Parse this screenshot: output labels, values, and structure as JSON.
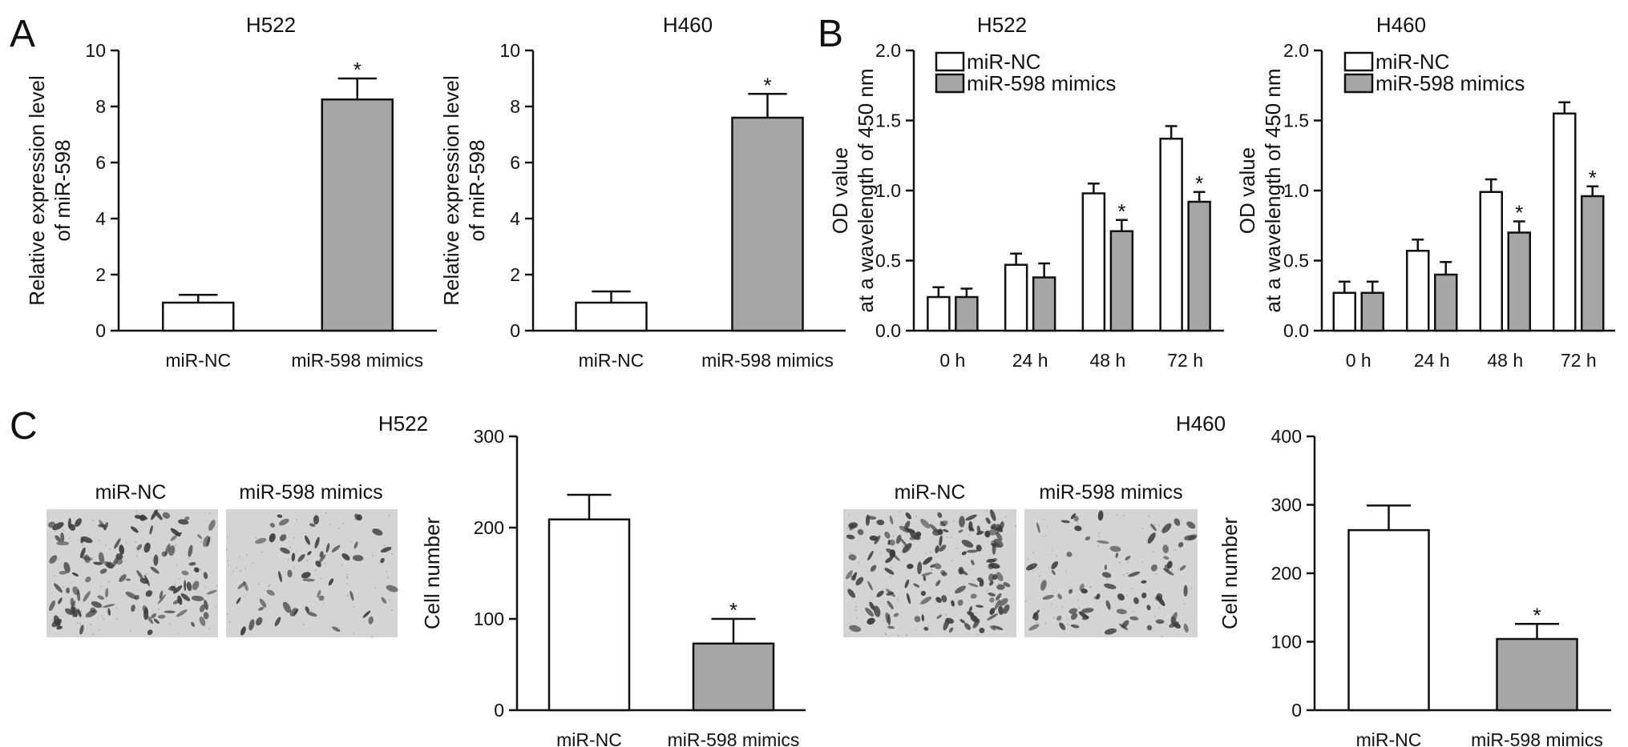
{
  "figure": {
    "panel_letters": [
      "A",
      "B",
      "C"
    ]
  },
  "colors": {
    "control_fill": "#ffffff",
    "treatment_fill": "#a6a6a6",
    "stroke": "#111111",
    "micro_background": "#d4d4d4",
    "cell_color": "#3a3a3a"
  },
  "micrographs": {
    "H522": {
      "labels": [
        "miR-NC",
        "miR-598 mimics"
      ]
    },
    "H460": {
      "labels": [
        "miR-NC",
        "miR-598 mimics"
      ]
    }
  },
  "chart_data": [
    {
      "id": "A_H522",
      "panel": "A",
      "type": "bar",
      "title": "H522",
      "ylabel": [
        "Relative expression level",
        "of miR-598"
      ],
      "xlabel": "",
      "categories": [
        "miR-NC",
        "miR-598 mimics"
      ],
      "values": [
        1.0,
        8.25
      ],
      "errors": [
        0.28,
        0.75
      ],
      "significant": [
        false,
        true
      ],
      "ylim": [
        0,
        10
      ],
      "yticks": [
        0,
        2,
        4,
        6,
        8,
        10
      ]
    },
    {
      "id": "A_H460",
      "panel": "A",
      "type": "bar",
      "title": "H460",
      "ylabel": [
        "Relative expression level",
        "of miR-598"
      ],
      "xlabel": "",
      "categories": [
        "miR-NC",
        "miR-598 mimics"
      ],
      "values": [
        1.0,
        7.6
      ],
      "errors": [
        0.4,
        0.85
      ],
      "significant": [
        false,
        true
      ],
      "ylim": [
        0,
        10
      ],
      "yticks": [
        0,
        2,
        4,
        6,
        8,
        10
      ]
    },
    {
      "id": "B_H522",
      "panel": "B",
      "type": "bar",
      "title": "H522",
      "ylabel": [
        "OD value",
        "at a wavelength of 450 nm"
      ],
      "xlabel": "",
      "categories": [
        "0 h",
        "24 h",
        "48 h",
        "72 h"
      ],
      "series": [
        {
          "name": "miR-NC",
          "values": [
            0.24,
            0.47,
            0.98,
            1.37
          ],
          "errors": [
            0.07,
            0.08,
            0.07,
            0.09
          ],
          "significant": [
            false,
            false,
            false,
            false
          ]
        },
        {
          "name": "miR-598 mimics",
          "values": [
            0.24,
            0.38,
            0.71,
            0.92
          ],
          "errors": [
            0.06,
            0.1,
            0.08,
            0.07
          ],
          "significant": [
            false,
            false,
            true,
            true
          ]
        }
      ],
      "ylim": [
        0,
        2.0
      ],
      "yticks": [
        "0.0",
        "0.5",
        "1.0",
        "1.5",
        "2.0"
      ],
      "legend": "top-left"
    },
    {
      "id": "B_H460",
      "panel": "B",
      "type": "bar",
      "title": "H460",
      "ylabel": [
        "OD value",
        "at a wavelength of 450 nm"
      ],
      "xlabel": "",
      "categories": [
        "0 h",
        "24 h",
        "48 h",
        "72 h"
      ],
      "series": [
        {
          "name": "miR-NC",
          "values": [
            0.27,
            0.57,
            0.99,
            1.55
          ],
          "errors": [
            0.08,
            0.08,
            0.09,
            0.08
          ],
          "significant": [
            false,
            false,
            false,
            false
          ]
        },
        {
          "name": "miR-598 mimics",
          "values": [
            0.27,
            0.4,
            0.7,
            0.96
          ],
          "errors": [
            0.08,
            0.09,
            0.08,
            0.07
          ],
          "significant": [
            false,
            false,
            true,
            true
          ]
        }
      ],
      "ylim": [
        0,
        2.0
      ],
      "yticks": [
        "0.0",
        "0.5",
        "1.0",
        "1.5",
        "2.0"
      ],
      "legend": "top-left"
    },
    {
      "id": "C_H522",
      "panel": "C",
      "type": "bar",
      "title": "H522",
      "ylabel": [
        "Cell number"
      ],
      "xlabel": "",
      "categories": [
        "miR-NC",
        "miR-598 mimics"
      ],
      "values": [
        209,
        73
      ],
      "errors": [
        27,
        27
      ],
      "significant": [
        false,
        true
      ],
      "ylim": [
        0,
        300
      ],
      "yticks": [
        0,
        100,
        200,
        300
      ]
    },
    {
      "id": "C_H460",
      "panel": "C",
      "type": "bar",
      "title": "H460",
      "ylabel": [
        "Cell number"
      ],
      "xlabel": "",
      "categories": [
        "miR-NC",
        "miR-598 mimics"
      ],
      "values": [
        263,
        104
      ],
      "errors": [
        36,
        22
      ],
      "significant": [
        false,
        true
      ],
      "ylim": [
        0,
        400
      ],
      "yticks": [
        0,
        100,
        200,
        300,
        400
      ]
    }
  ]
}
